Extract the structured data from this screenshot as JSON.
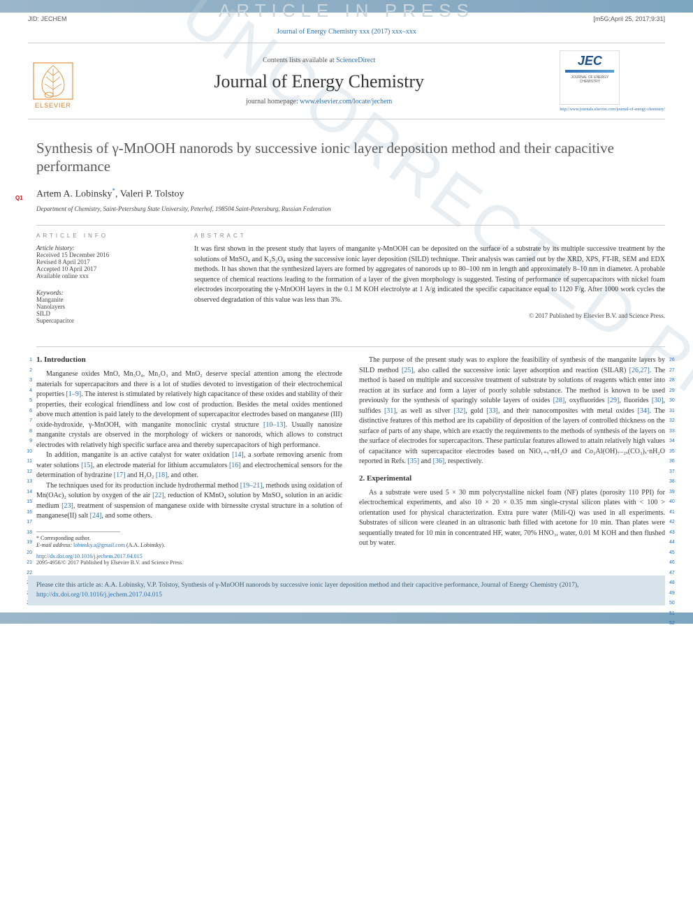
{
  "watermark_top": "ARTICLE IN PRESS",
  "watermark_big": "UNCORRECTED PROOF",
  "jid_left": "JID: JECHEM",
  "jid_right": "[m5G;April 25, 2017;9:31]",
  "cite_line": "Journal of Energy Chemistry xxx (2017) xxx–xxx",
  "masthead": {
    "contents_prefix": "Contents lists available at ",
    "contents_link": "ScienceDirect",
    "journal_name": "Journal of Energy Chemistry",
    "homepage_prefix": "journal homepage: ",
    "homepage_url": "www.elsevier.com/locate/jechem",
    "elsevier_brand": "ELSEVIER",
    "jec_label": "JEC",
    "jec_sub": "JOURNAL OF ENERGY CHEMISTRY",
    "jec_link": "http://www.journals.elsevier.com/journal-of-energy-chemistry/"
  },
  "qmark": "Q1",
  "title": "Synthesis of γ-MnOOH nanorods by successive ionic layer deposition method and their capacitive performance",
  "authors_html": "Artem A. Lobinsky*, Valeri P. Tolstoy",
  "author1": "Artem A. Lobinsky",
  "author_sup": "*",
  "author_sep": ", ",
  "author2": "Valeri P. Tolstoy",
  "affiliation": "Department of Chemistry, Saint-Petersburg State University, Peterhof, 198504 Saint-Petersburg, Russian Federation",
  "article_info": {
    "heading": "ARTICLE INFO",
    "history_label": "Article history:",
    "received": "Received 15 December 2016",
    "revised": "Revised 8 April 2017",
    "accepted": "Accepted 10 April 2017",
    "online": "Available online xxx",
    "keywords_label": "Keywords:",
    "keywords": [
      "Manganite",
      "Nanolayers",
      "SILD",
      "Supercapacitor"
    ]
  },
  "abstract": {
    "heading": "ABSTRACT",
    "text": "It was first shown in the present study that layers of manganite γ-MnOOH can be deposited on the surface of a substrate by its multiple successive treatment by the solutions of MnSO₄ and K₂S₂O₈ using the successive ionic layer deposition (SILD) technique. Their analysis was carried out by the XRD, XPS, FT-IR, SEM and EDX methods. It has shown that the synthesized layers are formed by aggregates of nanorods up to 80–100 nm in length and approximately 8–10 nm in diameter. A probable sequence of chemical reactions leading to the formation of a layer of the given morphology is suggested. Testing of performance of supercapacitors with nickel foam electrodes incorporating the γ-MnOOH layers in the 0.1 M KOH electrolyte at 1 A/g indicated the specific capacitance equal to 1120 F/g. After 1000 work cycles the observed degradation of this value was less than 3%.",
    "copyright": "© 2017 Published by Elsevier B.V. and Science Press."
  },
  "sections": {
    "intro_heading": "1. Introduction",
    "exp_heading": "2. Experimental"
  },
  "col1": {
    "p1": "Manganese oxides MnO, Mn₃O₄, Mn₂O₃ and MnO₂ deserve special attention among the electrode materials for supercapacitors and there is a lot of studies devoted to investigation of their electrochemical properties [1–9]. The interest is stimulated by relatively high capacitance of these oxides and stability of their properties, their ecological friendliness and low cost of production. Besides the metal oxides mentioned above much attention is paid lately to the development of supercapacitor electrodes based on manganese (III) oxide-hydroxide, γ-MnOOH, with manganite monoclinic crystal structure [10–13]. Usually nanosize manganite crystals are observed in the morphology of wickers or nanorods, which allows to construct electrodes with relatively high specific surface area and thereby supercapacitors of high performance.",
    "p2": "In addition, manganite is an active catalyst for water oxidation [14], a sorbate removing arsenic from water solutions [15], an electrode material for lithium accumulators [16] and electrochemical sensors for the determination of hydrazine [17] and H₂O₂ [18], and other.",
    "p3": "The techniques used for its production include hydrothermal method [19–21], methods using oxidation of Mn(OAc)₂ solution by oxygen of the air [22], reduction of KMnO₄ solution by MnSO₄ solution in an acidic medium [23], treatment of suspension of manganese oxide with birnessite crystal structure in a solution of manganese(II) salt [24], and some others.",
    "lines": [
      "1",
      "2",
      "3",
      "4",
      "5",
      "6",
      "7",
      "8",
      "9",
      "10",
      "11",
      "12",
      "13",
      "14",
      "15",
      "16",
      "17",
      "18",
      "19",
      "20",
      "21",
      "22",
      "23",
      "24",
      "25"
    ]
  },
  "col2": {
    "p1": "The purpose of the present study was to explore the feasibility of synthesis of the manganite layers by SILD method [25], also called the successive ionic layer adsorption and reaction (SILAR) [26,27]. The method is based on multiple and successive treatment of substrate by solutions of reagents which enter into reaction at its surface and form a layer of poorly soluble substance. The method is known to be used previously for the synthesis of sparingly soluble layers of oxides [28], oxyfluorides [29], fluorides [30], sulfides [31], as well as silver [32], gold [33], and their nanocomposites with metal oxides [34]. The distinctive features of this method are its capability of deposition of the layers of controlled thickness on the surface of parts of any shape, which are exactly the requirements to the methods of synthesis of the layers on the surface of electrodes for supercapacitors. These particular features allowed to attain relatively high values of capacitance with supercapacitor electrodes based on NiO₁₊ₓ·nH₂O and Co₂Al(OH)₇₋₂ₓ(CO₃)ₓ·nH₂O reported in Refs. [35] and [36], respectively.",
    "p2": "As a substrate were used 5 × 30 mm polycrystalline nickel foam (NF) plates (porosity 110 PPI) for electrochemical experiments, and also 10 × 20 × 0.35 mm single-crystal silicon plates with < 100 > orientation used for physical characterization. Extra pure water (Mili-Q) was used in all experiments. Substrates of silicon were cleaned in an ultrasonic bath filled with acetone for 10 min. Than plates were sequentially treated for 10 min in concentrated HF, water, 70% HNO₃, water, 0.01 M KOH and then flushed out by water.",
    "lines": [
      "26",
      "27",
      "28",
      "29",
      "30",
      "31",
      "32",
      "33",
      "34",
      "35",
      "36",
      "37",
      "38",
      "39",
      "40",
      "41",
      "42",
      "43",
      "44",
      "45",
      "46",
      "47",
      "48",
      "49",
      "50",
      "51",
      "52"
    ]
  },
  "footnote": {
    "corr": "* Corresponding author.",
    "email_label": "E-mail address: ",
    "email": "lobinsky.a@gmail.com",
    "email_suffix": " (A.A. Lobinsky).",
    "doi": "http://dx.doi.org/10.1016/j.jechem.2017.04.015",
    "issn": "2095-4956/© 2017 Published by Elsevier B.V. and Science Press."
  },
  "citebox": {
    "text": "Please cite this article as: A.A. Lobinsky, V.P. Tolstoy, Synthesis of γ-MnOOH nanorods by successive ionic layer deposition method and their capacitive performance, Journal of Energy Chemistry (2017), ",
    "url": "http://dx.doi.org/10.1016/j.jechem.2017.04.015"
  },
  "colors": {
    "link": "#2a6eb4",
    "grad_a": "#9bb6c9",
    "grad_b": "#7ea5bf",
    "wm": "#c9d6de",
    "orange": "#e67817"
  }
}
